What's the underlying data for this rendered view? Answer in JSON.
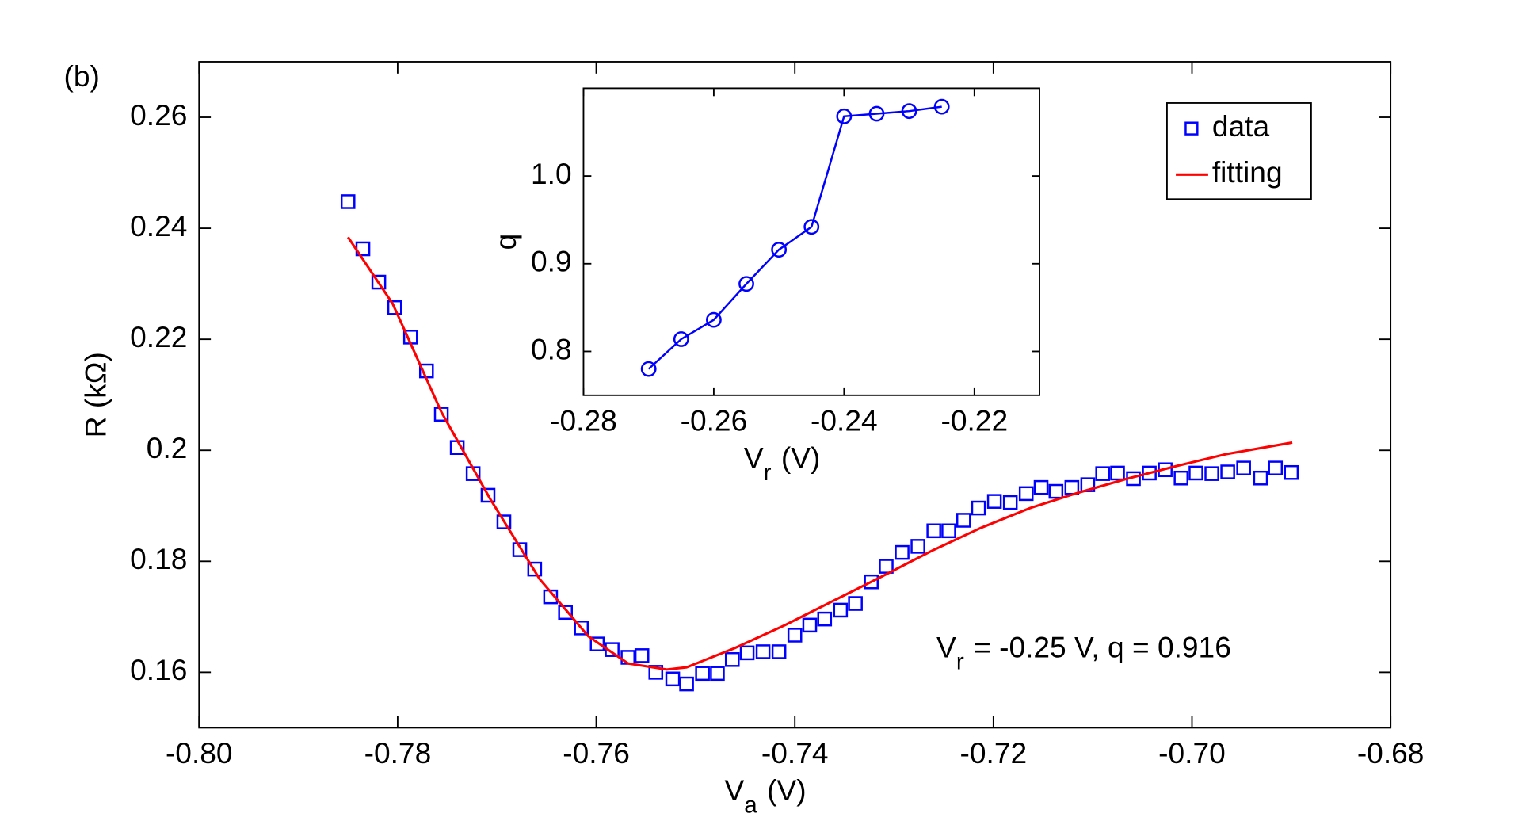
{
  "chart_data": [
    {
      "type": "scatter",
      "panel_label": "(b)",
      "y_label": "R (kΩ)",
      "x_label": {
        "main": "V",
        "sub": "a",
        "rest": "(V)"
      },
      "annotation": {
        "main": "V",
        "sub": "r",
        "rest": "= -0.25 V, q = 0.916"
      },
      "xlim": [
        -0.8,
        -0.68
      ],
      "xticks": [
        {
          "value": -0.8,
          "label": "-0.80"
        },
        -0.78,
        -0.76,
        -0.74,
        -0.72,
        {
          "value": -0.7,
          "label": "-0.70"
        },
        -0.68
      ],
      "ylim": [
        0.15,
        0.27
      ],
      "yticks": [
        0.16,
        0.18,
        0.2,
        0.22,
        0.24,
        0.26
      ],
      "legend": "upper right",
      "series": [
        {
          "name": "data",
          "color": "#0000ff",
          "marker": "square",
          "line": false,
          "x": [
            -0.785,
            -0.7835,
            -0.7819,
            -0.7803,
            -0.7787,
            -0.7771,
            -0.7756,
            -0.774,
            -0.7724,
            -0.7709,
            -0.7693,
            -0.7677,
            -0.7662,
            -0.7646,
            -0.7631,
            -0.7615,
            -0.7599,
            -0.7584,
            -0.7568,
            -0.7554,
            -0.754,
            -0.7523,
            -0.7509,
            -0.7493,
            -0.7478,
            -0.7463,
            -0.7448,
            -0.7432,
            -0.7416,
            -0.74,
            -0.7385,
            -0.737,
            -0.7354,
            -0.7339,
            -0.7323,
            -0.7308,
            -0.7292,
            -0.7276,
            -0.726,
            -0.7245,
            -0.723,
            -0.7215,
            -0.7199,
            -0.7183,
            -0.7167,
            -0.7152,
            -0.7137,
            -0.7121,
            -0.7105,
            -0.709,
            -0.7075,
            -0.7059,
            -0.7043,
            -0.7027,
            -0.7011,
            -0.6996,
            -0.698,
            -0.6964,
            -0.6948,
            -0.6931,
            -0.6916,
            -0.69
          ],
          "values": [
            0.2448,
            0.2363,
            0.2303,
            0.2257,
            0.2204,
            0.2143,
            0.2065,
            0.2005,
            0.1958,
            0.1919,
            0.1871,
            0.1821,
            0.1786,
            0.1736,
            0.1708,
            0.168,
            0.1651,
            0.1641,
            0.1627,
            0.163,
            0.16,
            0.1588,
            0.1579,
            0.1598,
            0.1598,
            0.1623,
            0.1635,
            0.1637,
            0.1637,
            0.1667,
            0.1685,
            0.1696,
            0.1712,
            0.1724,
            0.1763,
            0.1791,
            0.1816,
            0.1827,
            0.1855,
            0.1855,
            0.1874,
            0.1896,
            0.1908,
            0.1906,
            0.1922,
            0.1933,
            0.1926,
            0.1933,
            0.1938,
            0.1958,
            0.1959,
            0.1949,
            0.1959,
            0.1965,
            0.195,
            0.1959,
            0.1958,
            0.1961,
            0.1968,
            0.195,
            0.1968,
            0.196
          ]
        },
        {
          "name": "fitting",
          "color": "#ff0000",
          "marker": null,
          "line": true,
          "x": [
            -0.785,
            -0.7805,
            -0.7756,
            -0.7707,
            -0.7657,
            -0.7608,
            -0.7568,
            -0.7529,
            -0.7509,
            -0.746,
            -0.741,
            -0.7361,
            -0.7312,
            -0.7262,
            -0.7213,
            -0.7163,
            -0.7114,
            -0.7065,
            -0.7015,
            -0.6966,
            -0.6899
          ],
          "values": [
            0.2384,
            0.2264,
            0.2069,
            0.1913,
            0.1768,
            0.1665,
            0.1616,
            0.1605,
            0.1609,
            0.1644,
            0.1685,
            0.1729,
            0.1773,
            0.1819,
            0.186,
            0.1896,
            0.1924,
            0.1949,
            0.1972,
            0.1993,
            0.2014
          ]
        }
      ]
    },
    {
      "type": "line",
      "y_label": "q",
      "x_label": {
        "main": "V",
        "sub": "r",
        "rest": "(V)"
      },
      "xlim": [
        -0.28,
        -0.21
      ],
      "xticks": [
        -0.28,
        -0.26,
        -0.24,
        -0.22
      ],
      "ylim": [
        0.75,
        1.1
      ],
      "yticks": [
        0.8,
        0.9,
        {
          "value": 1.0,
          "label": "1.0"
        }
      ],
      "series": [
        {
          "color": "#0000ff",
          "marker": "circle",
          "line": true,
          "x": [
            -0.27,
            -0.265,
            -0.26,
            -0.255,
            -0.25,
            -0.245,
            -0.24,
            -0.235,
            -0.23,
            -0.225
          ],
          "values": [
            0.78,
            0.814,
            0.836,
            0.877,
            0.916,
            0.942,
            1.068,
            1.071,
            1.074,
            1.079
          ]
        }
      ]
    }
  ]
}
